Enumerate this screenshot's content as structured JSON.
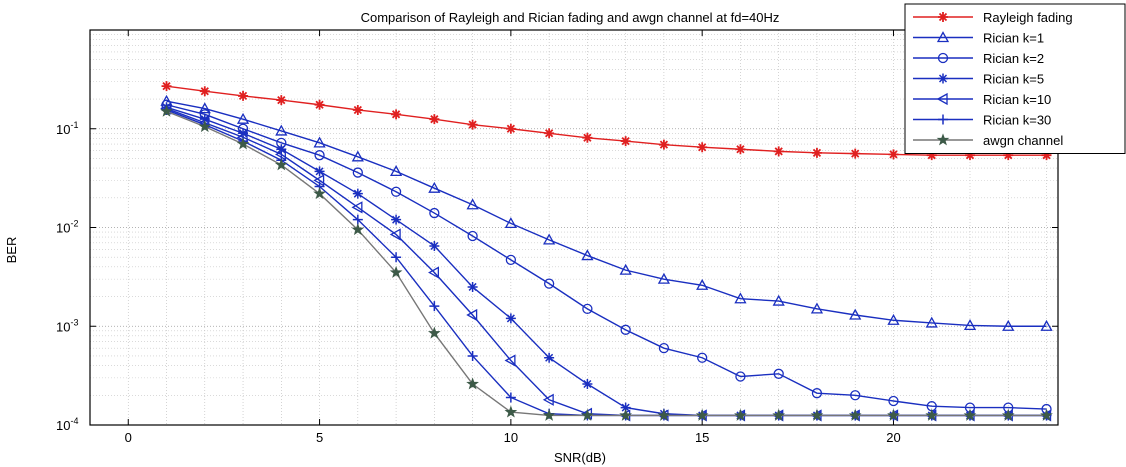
{
  "chart_data": {
    "type": "line",
    "title": "Comparison of Rayleigh  and Rician fading and awgn channel at fd=40Hz",
    "xlabel": "SNR(dB)",
    "ylabel": "BER",
    "x_scale": "linear",
    "y_scale": "log",
    "xlim": [
      -1,
      24.3
    ],
    "ylim": [
      0.0001,
      1
    ],
    "x_ticks": [
      0,
      5,
      10,
      15,
      20
    ],
    "x_tick_labels": [
      "0",
      "5",
      "10",
      "15",
      "20"
    ],
    "y_ticks": [
      0.0001,
      0.001,
      0.01,
      0.1
    ],
    "y_tick_labels": [
      {
        "base": "10",
        "exp": "-4"
      },
      {
        "base": "10",
        "exp": "-3"
      },
      {
        "base": "10",
        "exp": "-2"
      },
      {
        "base": "10",
        "exp": "-1"
      }
    ],
    "grid": true,
    "legend_position": "top-right",
    "x": [
      1,
      2,
      3,
      4,
      5,
      6,
      7,
      8,
      9,
      10,
      11,
      12,
      13,
      14,
      15,
      16,
      17,
      18,
      19,
      20,
      21,
      22,
      23,
      24
    ],
    "series": [
      {
        "name": "Rayleigh fading",
        "color": "#e02020",
        "marker": "plus-star",
        "values": [
          0.27,
          0.24,
          0.215,
          0.195,
          0.175,
          0.155,
          0.14,
          0.125,
          0.11,
          0.1,
          0.09,
          0.081,
          0.075,
          0.069,
          0.065,
          0.062,
          0.059,
          0.057,
          0.056,
          0.055,
          0.054,
          0.054,
          0.054,
          0.054
        ]
      },
      {
        "name": "Rician k=1",
        "color": "#1a2fc0",
        "marker": "triangle-up",
        "values": [
          0.19,
          0.16,
          0.125,
          0.095,
          0.072,
          0.052,
          0.037,
          0.025,
          0.017,
          0.011,
          0.0075,
          0.0052,
          0.0037,
          0.003,
          0.0026,
          0.0019,
          0.0018,
          0.0015,
          0.0013,
          0.00115,
          0.00108,
          0.00102,
          0.001,
          0.001
        ]
      },
      {
        "name": "Rician k=2",
        "color": "#1a2fc0",
        "marker": "circle",
        "values": [
          0.175,
          0.14,
          0.1,
          0.072,
          0.054,
          0.036,
          0.023,
          0.014,
          0.0082,
          0.0047,
          0.0027,
          0.0015,
          0.00092,
          0.0006,
          0.00048,
          0.00031,
          0.00033,
          0.00021,
          0.0002,
          0.000175,
          0.000155,
          0.00015,
          0.00015,
          0.000145
        ]
      },
      {
        "name": "Rician k=5",
        "color": "#1a2fc0",
        "marker": "star",
        "values": [
          0.165,
          0.125,
          0.09,
          0.062,
          0.037,
          0.022,
          0.012,
          0.0065,
          0.0025,
          0.0012,
          0.00048,
          0.00026,
          0.00015,
          0.00013,
          0.000125,
          0.000125,
          0.000125,
          0.000125,
          0.000125,
          0.000125,
          0.000125,
          0.000125,
          0.000125,
          0.000125
        ]
      },
      {
        "name": "Rician k=10",
        "color": "#1a2fc0",
        "marker": "triangle-left",
        "values": [
          0.16,
          0.115,
          0.082,
          0.055,
          0.03,
          0.016,
          0.0085,
          0.0035,
          0.0013,
          0.00045,
          0.00018,
          0.00013,
          0.000125,
          0.000125,
          0.000125,
          0.000125,
          0.000125,
          0.000125,
          0.000125,
          0.000125,
          0.000125,
          0.000125,
          0.000125,
          0.000125
        ]
      },
      {
        "name": "Rician k=30",
        "color": "#1a2fc0",
        "marker": "plus",
        "values": [
          0.155,
          0.11,
          0.075,
          0.048,
          0.026,
          0.012,
          0.005,
          0.0016,
          0.0005,
          0.00019,
          0.00013,
          0.000125,
          0.000125,
          0.000125,
          0.000125,
          0.000125,
          0.000125,
          0.000125,
          0.000125,
          0.000125,
          0.000125,
          0.000125,
          0.000125,
          0.000125
        ]
      },
      {
        "name": "awgn channel",
        "color": "#3d5a48",
        "line_color": "#777777",
        "marker": "pentagram",
        "values": [
          0.15,
          0.105,
          0.07,
          0.043,
          0.022,
          0.0095,
          0.0035,
          0.00085,
          0.00026,
          0.000135,
          0.000125,
          0.000125,
          0.000125,
          0.000125,
          0.000125,
          0.000125,
          0.000125,
          0.000125,
          0.000125,
          0.000125,
          0.000125,
          0.000125,
          0.000125,
          0.000125
        ]
      }
    ]
  }
}
